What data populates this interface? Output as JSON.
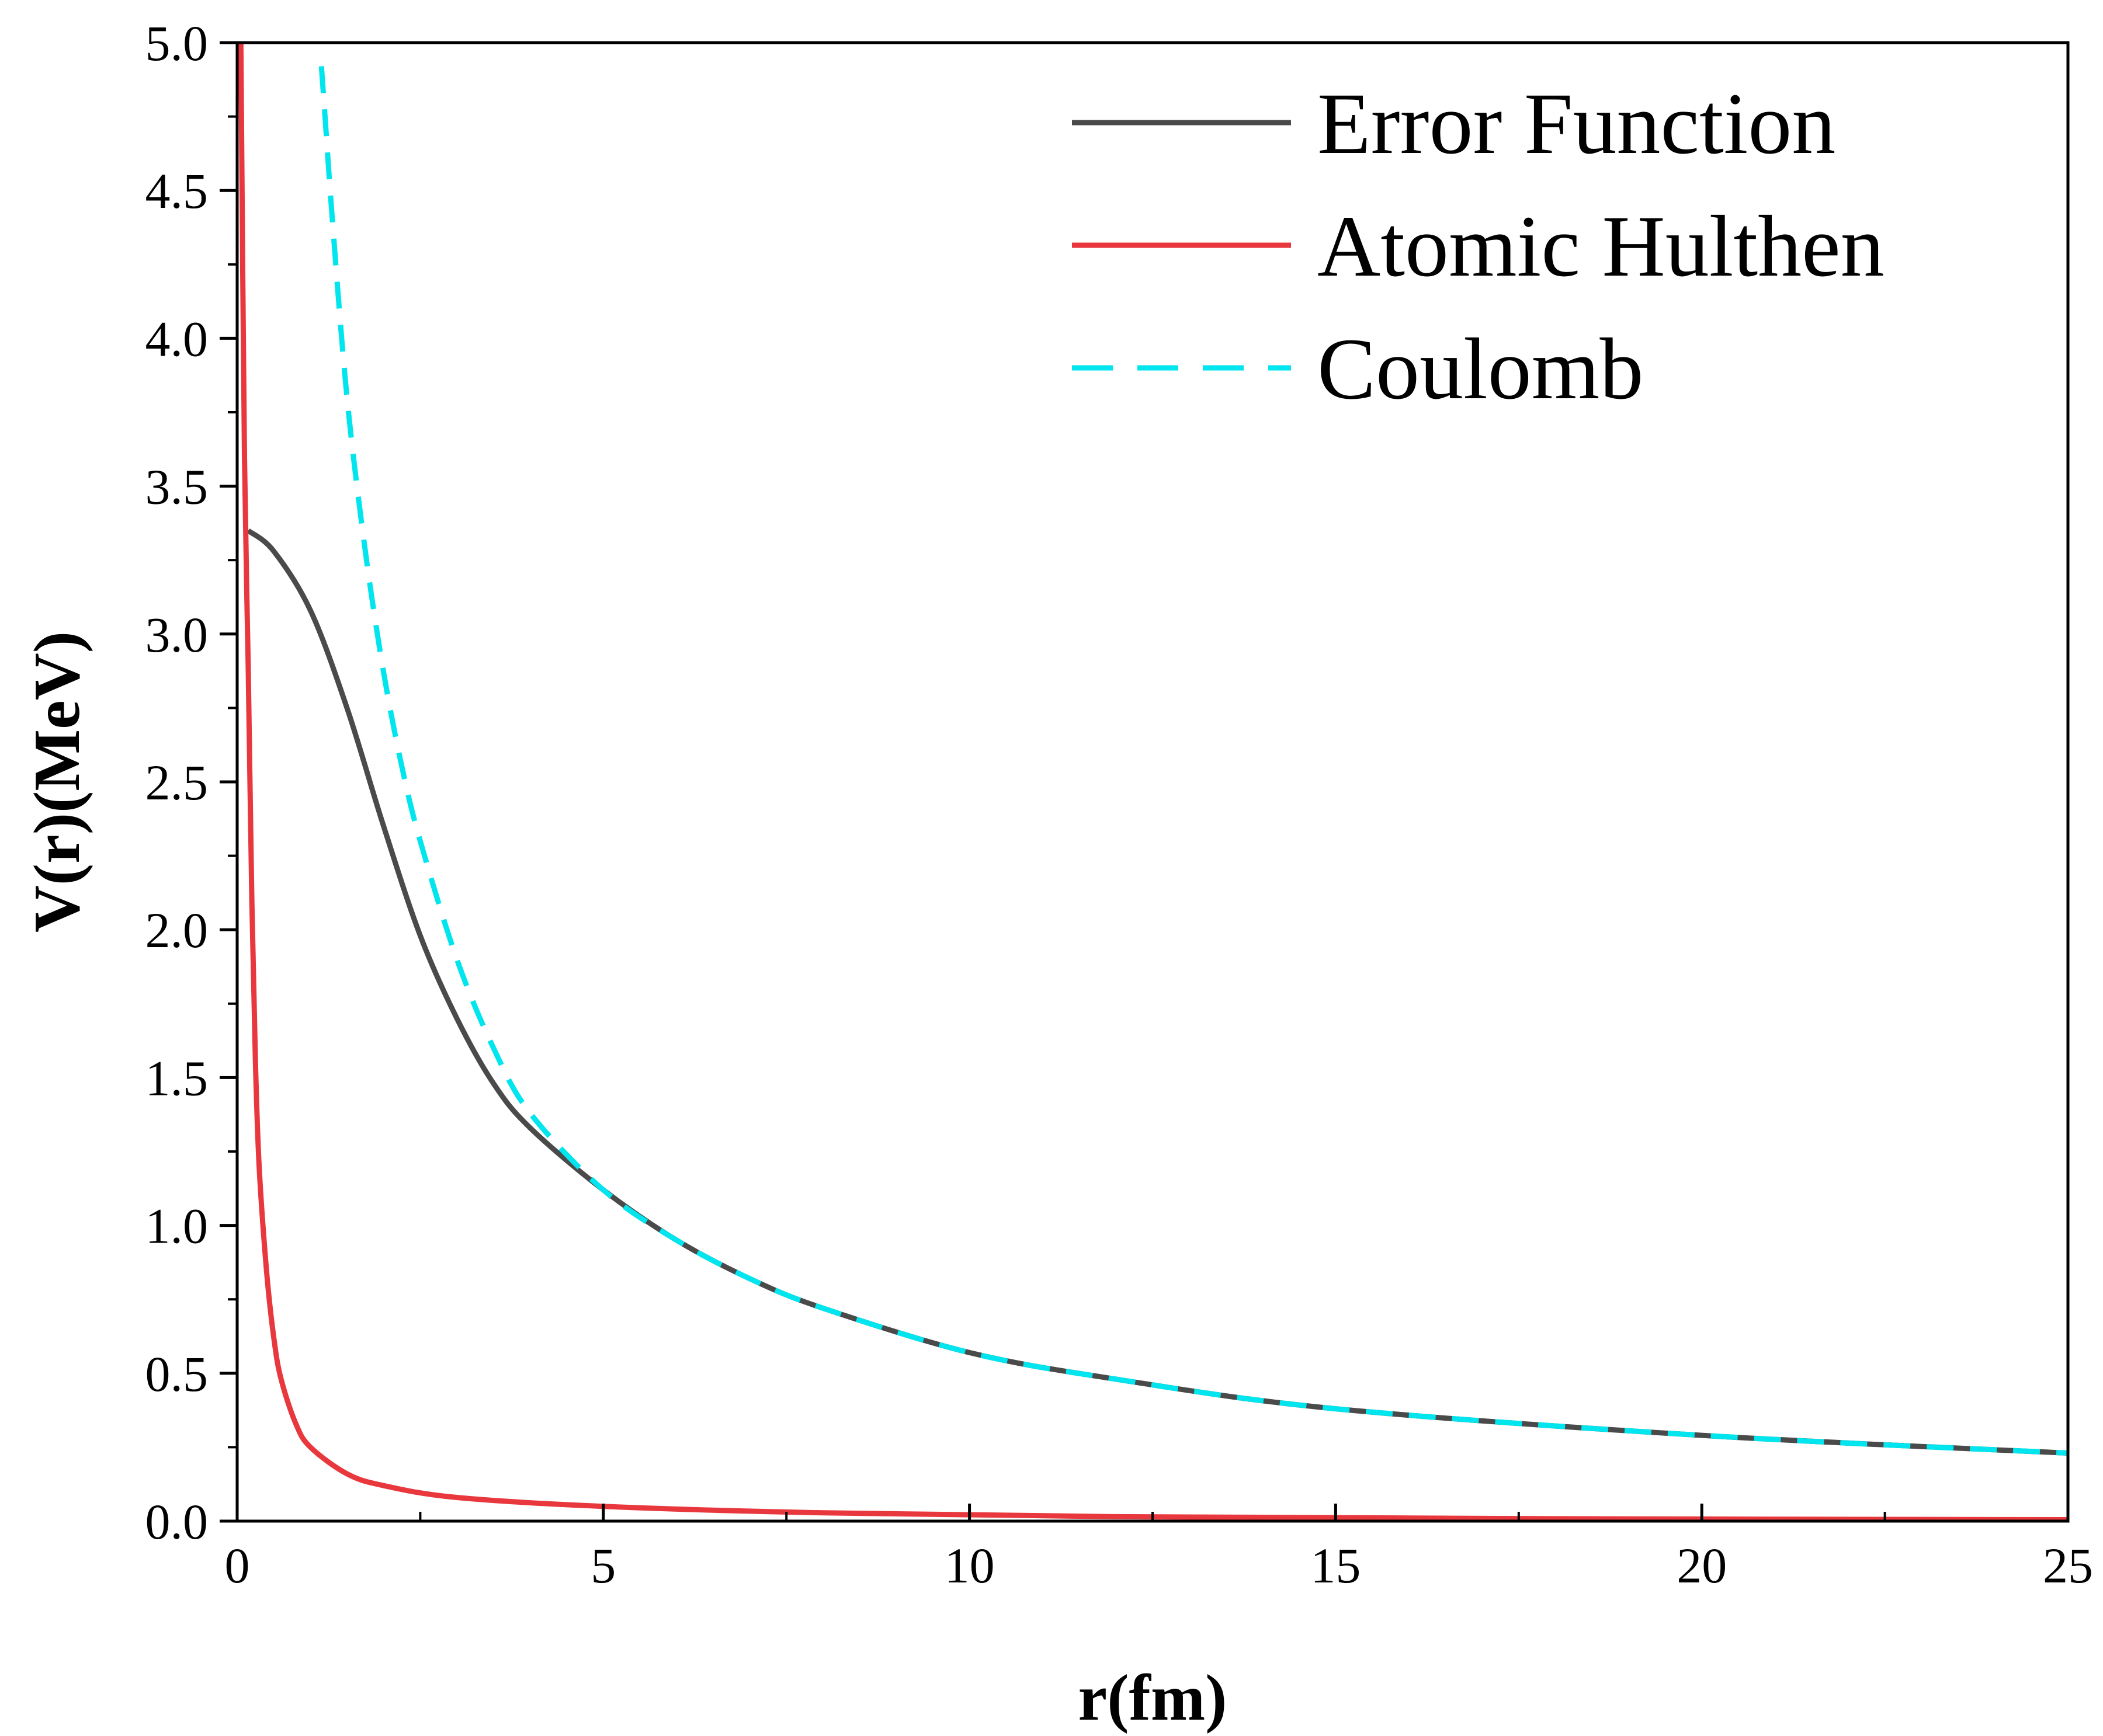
{
  "chart_data": {
    "type": "line",
    "title": "",
    "xlabel": "r(fm)",
    "ylabel": "V(r)(MeV)",
    "xlim": [
      0,
      25
    ],
    "ylim": [
      0,
      5.0
    ],
    "xticks": [
      "0",
      "5",
      "10",
      "15",
      "20",
      "25"
    ],
    "yticks": [
      "0.0",
      "0.5",
      "1.0",
      "1.5",
      "2.0",
      "2.5",
      "3.0",
      "3.5",
      "4.0",
      "4.5",
      "5.0"
    ],
    "grid": false,
    "legend_position": "top-right",
    "series": [
      {
        "name": "Error Function",
        "color": "#4a4a4a",
        "dash": "solid",
        "x": [
          0.15,
          0.5,
          1.0,
          1.5,
          2.0,
          2.5,
          3.0,
          3.5,
          4.0,
          5.0,
          6.0,
          7.0,
          8.0,
          10.0,
          12.0,
          15.0,
          20.0,
          25.0
        ],
        "y": [
          3.35,
          3.28,
          3.08,
          2.75,
          2.35,
          1.98,
          1.7,
          1.48,
          1.33,
          1.12,
          0.95,
          0.82,
          0.72,
          0.57,
          0.48,
          0.38,
          0.29,
          0.23
        ]
      },
      {
        "name": "Atomic Hulthen",
        "color": "#e8383d",
        "dash": "solid",
        "x": [
          0.05,
          0.1,
          0.15,
          0.2,
          0.25,
          0.3,
          0.4,
          0.5,
          0.6,
          0.8,
          1.0,
          1.5,
          2.0,
          3.0,
          5.0,
          8.0,
          12.0,
          18.0,
          25.0
        ],
        "y": [
          5.0,
          3.6,
          2.9,
          2.1,
          1.55,
          1.2,
          0.85,
          0.62,
          0.48,
          0.33,
          0.25,
          0.16,
          0.12,
          0.08,
          0.05,
          0.028,
          0.015,
          0.008,
          0.005
        ]
      },
      {
        "name": "Coulomb",
        "color": "#00e5ee",
        "dash": "dashed",
        "x": [
          1.15,
          1.2,
          1.3,
          1.5,
          1.75,
          2.0,
          2.25,
          2.5,
          3.0,
          3.5,
          4.0,
          5.0,
          6.0,
          7.0,
          8.0,
          10.0,
          12.0,
          15.0,
          20.0,
          25.0
        ],
        "y": [
          4.92,
          4.75,
          4.4,
          3.8,
          3.28,
          2.87,
          2.55,
          2.3,
          1.9,
          1.6,
          1.38,
          1.12,
          0.95,
          0.82,
          0.72,
          0.57,
          0.48,
          0.38,
          0.29,
          0.23
        ]
      }
    ]
  }
}
